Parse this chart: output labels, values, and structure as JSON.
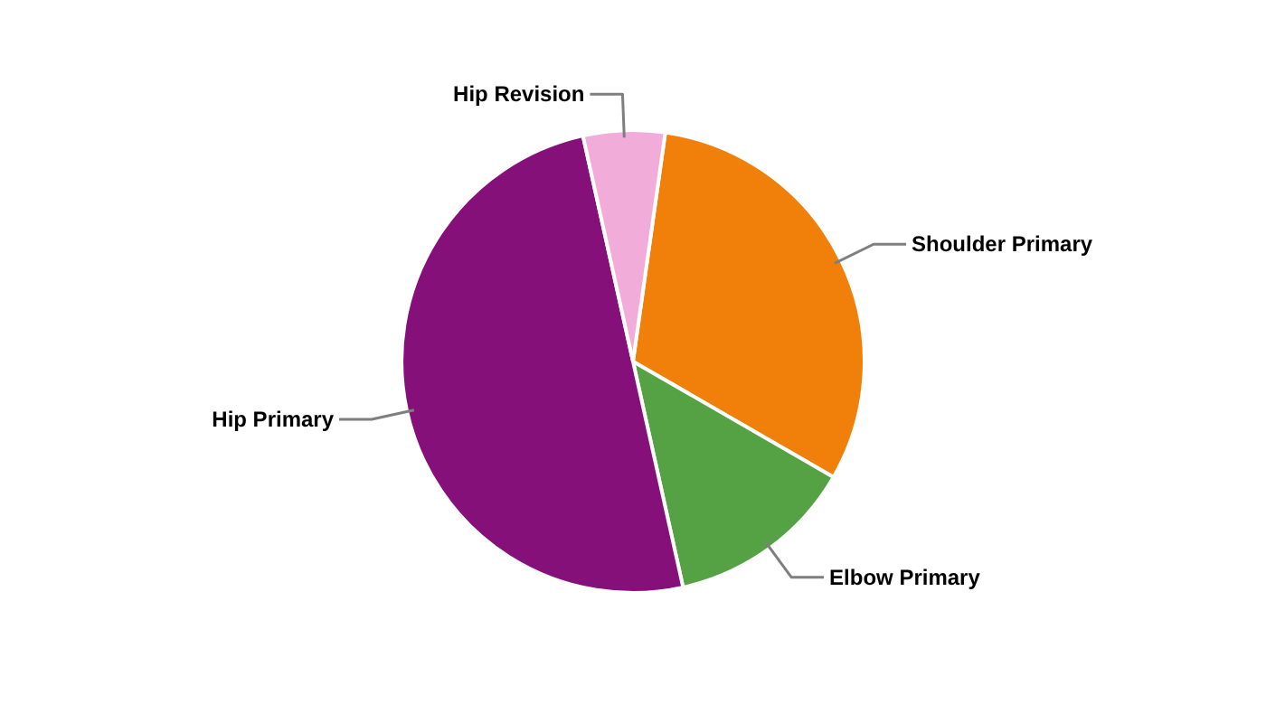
{
  "chart_data": {
    "type": "pie",
    "categories": [
      "Shoulder Primary",
      "Elbow Primary",
      "Hip Primary",
      "Hip Revision"
    ],
    "values": [
      31.1,
      13.2,
      50.0,
      5.7
    ],
    "colors": [
      "#f0800a",
      "#55a244",
      "#85107a",
      "#f2acd9"
    ]
  }
}
